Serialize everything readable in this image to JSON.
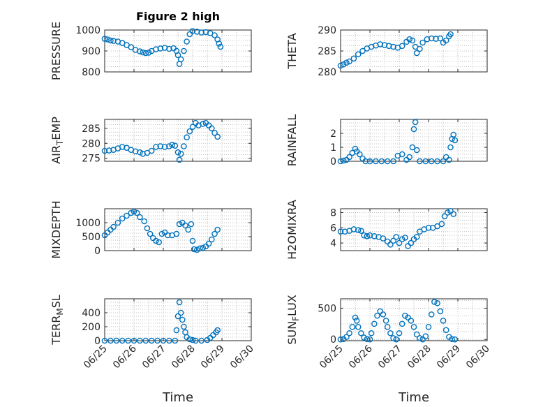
{
  "figure_title": "Figure 2 high",
  "chart_data": [
    {
      "type": "scatter",
      "ylabel": "PRESSURE",
      "ylabel_parts": [
        {
          "t": "PRESSURE",
          "sub": false
        }
      ],
      "xlabel": "",
      "xlim": [
        0,
        5
      ],
      "ylim": [
        800,
        1000
      ],
      "yticks": [
        800,
        900,
        1000
      ],
      "xticks": [
        0,
        1,
        2,
        3,
        4,
        5
      ],
      "xticklabels": [],
      "title": "Figure 2 high",
      "grid": true,
      "points": [
        [
          0,
          958
        ],
        [
          0.1,
          955
        ],
        [
          0.2,
          950
        ],
        [
          0.3,
          948
        ],
        [
          0.45,
          945
        ],
        [
          0.6,
          938
        ],
        [
          0.75,
          928
        ],
        [
          0.9,
          918
        ],
        [
          1.05,
          905
        ],
        [
          1.2,
          898
        ],
        [
          1.3,
          893
        ],
        [
          1.4,
          890
        ],
        [
          1.5,
          892
        ],
        [
          1.6,
          900
        ],
        [
          1.75,
          908
        ],
        [
          1.9,
          912
        ],
        [
          2.05,
          915
        ],
        [
          2.2,
          910
        ],
        [
          2.35,
          913
        ],
        [
          2.45,
          900
        ],
        [
          2.5,
          880
        ],
        [
          2.55,
          838
        ],
        [
          2.6,
          860
        ],
        [
          2.7,
          900
        ],
        [
          2.8,
          945
        ],
        [
          2.9,
          980
        ],
        [
          3.0,
          995
        ],
        [
          3.15,
          992
        ],
        [
          3.3,
          988
        ],
        [
          3.45,
          990
        ],
        [
          3.6,
          985
        ],
        [
          3.75,
          975
        ],
        [
          3.85,
          955
        ],
        [
          3.9,
          935
        ],
        [
          3.95,
          920
        ]
      ]
    },
    {
      "type": "scatter",
      "ylabel": "THETA",
      "ylabel_parts": [
        {
          "t": "THETA",
          "sub": false
        }
      ],
      "xlabel": "",
      "xlim": [
        0,
        5
      ],
      "ylim": [
        280,
        290
      ],
      "yticks": [
        280,
        285,
        290
      ],
      "xticks": [
        0,
        1,
        2,
        3,
        4,
        5
      ],
      "xticklabels": [],
      "grid": true,
      "points": [
        [
          0,
          281.5
        ],
        [
          0.1,
          281.8
        ],
        [
          0.2,
          282.2
        ],
        [
          0.3,
          282.5
        ],
        [
          0.45,
          283.2
        ],
        [
          0.6,
          284.2
        ],
        [
          0.75,
          285.0
        ],
        [
          0.9,
          285.6
        ],
        [
          1.05,
          286.0
        ],
        [
          1.2,
          286.3
        ],
        [
          1.35,
          286.6
        ],
        [
          1.5,
          286.4
        ],
        [
          1.65,
          286.2
        ],
        [
          1.8,
          286.0
        ],
        [
          1.95,
          285.8
        ],
        [
          2.1,
          286.2
        ],
        [
          2.25,
          287.2
        ],
        [
          2.35,
          287.8
        ],
        [
          2.45,
          287.5
        ],
        [
          2.55,
          286.0
        ],
        [
          2.6,
          284.5
        ],
        [
          2.7,
          285.5
        ],
        [
          2.8,
          287.0
        ],
        [
          2.95,
          287.8
        ],
        [
          3.1,
          288.0
        ],
        [
          3.25,
          287.9
        ],
        [
          3.4,
          288.0
        ],
        [
          3.5,
          287.0
        ],
        [
          3.6,
          287.5
        ],
        [
          3.7,
          288.5
        ],
        [
          3.75,
          289.0
        ]
      ]
    },
    {
      "type": "scatter",
      "ylabel": "AIR_TEMP",
      "ylabel_parts": [
        {
          "t": "AIR",
          "sub": false
        },
        {
          "t": "T",
          "sub": true
        },
        {
          "t": "EMP",
          "sub": false
        }
      ],
      "xlabel": "",
      "xlim": [
        0,
        5
      ],
      "ylim": [
        274,
        288
      ],
      "yticks": [
        275,
        280,
        285
      ],
      "xticks": [
        0,
        1,
        2,
        3,
        4,
        5
      ],
      "xticklabels": [],
      "grid": true,
      "points": [
        [
          0,
          277.5
        ],
        [
          0.15,
          277.6
        ],
        [
          0.3,
          277.8
        ],
        [
          0.45,
          278.3
        ],
        [
          0.6,
          278.8
        ],
        [
          0.75,
          278.5
        ],
        [
          0.9,
          277.8
        ],
        [
          1.05,
          277.3
        ],
        [
          1.2,
          277.0
        ],
        [
          1.3,
          276.5
        ],
        [
          1.45,
          276.8
        ],
        [
          1.6,
          277.5
        ],
        [
          1.75,
          278.8
        ],
        [
          1.9,
          279.0
        ],
        [
          2.05,
          278.8
        ],
        [
          2.2,
          279.0
        ],
        [
          2.3,
          279.5
        ],
        [
          2.4,
          279.2
        ],
        [
          2.5,
          277.0
        ],
        [
          2.55,
          274.5
        ],
        [
          2.6,
          276.5
        ],
        [
          2.7,
          279.0
        ],
        [
          2.8,
          282.0
        ],
        [
          2.9,
          284.0
        ],
        [
          3.0,
          285.5
        ],
        [
          3.1,
          286.8
        ],
        [
          3.2,
          286.0
        ],
        [
          3.35,
          286.5
        ],
        [
          3.45,
          286.8
        ],
        [
          3.55,
          286.0
        ],
        [
          3.65,
          285.0
        ],
        [
          3.75,
          283.5
        ],
        [
          3.85,
          282.2
        ]
      ]
    },
    {
      "type": "scatter",
      "ylabel": "RAINFALL",
      "ylabel_parts": [
        {
          "t": "RAINFALL",
          "sub": false
        }
      ],
      "xlabel": "",
      "xlim": [
        0,
        5
      ],
      "ylim": [
        0,
        3
      ],
      "yticks": [
        0,
        1,
        2
      ],
      "xticks": [
        0,
        1,
        2,
        3,
        4,
        5
      ],
      "xticklabels": [],
      "grid": true,
      "points": [
        [
          0,
          0
        ],
        [
          0.1,
          0.05
        ],
        [
          0.2,
          0.1
        ],
        [
          0.3,
          0.3
        ],
        [
          0.4,
          0.6
        ],
        [
          0.5,
          0.9
        ],
        [
          0.55,
          0.7
        ],
        [
          0.65,
          0.5
        ],
        [
          0.75,
          0.2
        ],
        [
          0.85,
          0
        ],
        [
          1.0,
          0
        ],
        [
          1.2,
          0
        ],
        [
          1.4,
          0
        ],
        [
          1.6,
          0
        ],
        [
          1.8,
          0
        ],
        [
          1.95,
          0.4
        ],
        [
          2.1,
          0.5
        ],
        [
          2.25,
          0.1
        ],
        [
          2.35,
          0.3
        ],
        [
          2.45,
          1.0
        ],
        [
          2.5,
          2.3
        ],
        [
          2.55,
          2.8
        ],
        [
          2.6,
          0.8
        ],
        [
          2.7,
          0
        ],
        [
          2.9,
          0
        ],
        [
          3.1,
          0
        ],
        [
          3.3,
          0
        ],
        [
          3.5,
          0
        ],
        [
          3.6,
          0.3
        ],
        [
          3.7,
          0.1
        ],
        [
          3.75,
          1.0
        ],
        [
          3.8,
          1.6
        ],
        [
          3.85,
          1.9
        ],
        [
          3.9,
          1.5
        ]
      ]
    },
    {
      "type": "scatter",
      "ylabel": "MIXDEPTH",
      "ylabel_parts": [
        {
          "t": "MIXDEPTH",
          "sub": false
        }
      ],
      "xlabel": "",
      "xlim": [
        0,
        5
      ],
      "ylim": [
        0,
        1500
      ],
      "yticks": [
        0,
        500,
        1000
      ],
      "xticks": [
        0,
        1,
        2,
        3,
        4,
        5
      ],
      "xticklabels": [],
      "grid": true,
      "points": [
        [
          0,
          550
        ],
        [
          0.1,
          650
        ],
        [
          0.2,
          750
        ],
        [
          0.3,
          850
        ],
        [
          0.45,
          1000
        ],
        [
          0.6,
          1150
        ],
        [
          0.75,
          1250
        ],
        [
          0.9,
          1350
        ],
        [
          1.0,
          1400
        ],
        [
          1.1,
          1350
        ],
        [
          1.2,
          1200
        ],
        [
          1.35,
          1050
        ],
        [
          1.45,
          800
        ],
        [
          1.55,
          600
        ],
        [
          1.65,
          450
        ],
        [
          1.75,
          350
        ],
        [
          1.85,
          300
        ],
        [
          1.95,
          600
        ],
        [
          2.05,
          650
        ],
        [
          2.15,
          550
        ],
        [
          2.3,
          550
        ],
        [
          2.45,
          600
        ],
        [
          2.55,
          950
        ],
        [
          2.65,
          1000
        ],
        [
          2.75,
          900
        ],
        [
          2.85,
          750
        ],
        [
          2.95,
          950
        ],
        [
          3.0,
          350
        ],
        [
          3.05,
          50
        ],
        [
          3.15,
          30
        ],
        [
          3.25,
          80
        ],
        [
          3.35,
          100
        ],
        [
          3.45,
          150
        ],
        [
          3.55,
          250
        ],
        [
          3.65,
          400
        ],
        [
          3.75,
          600
        ],
        [
          3.85,
          750
        ]
      ]
    },
    {
      "type": "scatter",
      "ylabel": "H2OMIXRA",
      "ylabel_parts": [
        {
          "t": "H2OMIXRA",
          "sub": false
        }
      ],
      "xlabel": "",
      "xlim": [
        0,
        5
      ],
      "ylim": [
        3,
        8.5
      ],
      "yticks": [
        4,
        6,
        8
      ],
      "xticks": [
        0,
        1,
        2,
        3,
        4,
        5
      ],
      "xticklabels": [],
      "grid": true,
      "points": [
        [
          0,
          5.5
        ],
        [
          0.15,
          5.5
        ],
        [
          0.3,
          5.6
        ],
        [
          0.45,
          5.8
        ],
        [
          0.6,
          5.7
        ],
        [
          0.7,
          5.6
        ],
        [
          0.8,
          5.0
        ],
        [
          0.9,
          4.9
        ],
        [
          1.0,
          5.0
        ],
        [
          1.15,
          4.9
        ],
        [
          1.3,
          4.8
        ],
        [
          1.45,
          4.6
        ],
        [
          1.6,
          4.2
        ],
        [
          1.7,
          3.8
        ],
        [
          1.8,
          4.3
        ],
        [
          1.9,
          4.8
        ],
        [
          2.0,
          4.0
        ],
        [
          2.1,
          4.5
        ],
        [
          2.2,
          4.7
        ],
        [
          2.3,
          3.6
        ],
        [
          2.4,
          4.0
        ],
        [
          2.5,
          4.5
        ],
        [
          2.6,
          4.8
        ],
        [
          2.7,
          5.5
        ],
        [
          2.85,
          5.8
        ],
        [
          3.0,
          6.0
        ],
        [
          3.15,
          6.0
        ],
        [
          3.3,
          6.2
        ],
        [
          3.45,
          6.5
        ],
        [
          3.55,
          7.5
        ],
        [
          3.65,
          8.0
        ],
        [
          3.75,
          8.2
        ],
        [
          3.85,
          7.8
        ]
      ]
    },
    {
      "type": "scatter",
      "ylabel": "TERR_MSL",
      "ylabel_parts": [
        {
          "t": "TERR",
          "sub": false
        },
        {
          "t": "M",
          "sub": true
        },
        {
          "t": "SL",
          "sub": false
        }
      ],
      "xlabel": "Time",
      "xlim": [
        0,
        5
      ],
      "ylim": [
        0,
        600
      ],
      "yticks": [
        0,
        200,
        400
      ],
      "xticks": [
        0,
        1,
        2,
        3,
        4,
        5
      ],
      "xticklabels": [
        "06/25",
        "06/26",
        "06/27",
        "06/28",
        "06/29",
        "06/30"
      ],
      "grid": true,
      "points": [
        [
          0,
          0
        ],
        [
          0.2,
          0
        ],
        [
          0.4,
          0
        ],
        [
          0.6,
          0
        ],
        [
          0.8,
          0
        ],
        [
          1.0,
          0
        ],
        [
          1.2,
          0
        ],
        [
          1.4,
          0
        ],
        [
          1.6,
          0
        ],
        [
          1.8,
          0
        ],
        [
          2.0,
          0
        ],
        [
          2.2,
          0
        ],
        [
          2.4,
          0
        ],
        [
          2.45,
          150
        ],
        [
          2.5,
          350
        ],
        [
          2.55,
          550
        ],
        [
          2.6,
          400
        ],
        [
          2.65,
          300
        ],
        [
          2.7,
          200
        ],
        [
          2.75,
          120
        ],
        [
          2.8,
          50
        ],
        [
          2.9,
          20
        ],
        [
          3.0,
          10
        ],
        [
          3.1,
          0
        ],
        [
          3.3,
          0
        ],
        [
          3.5,
          10
        ],
        [
          3.6,
          40
        ],
        [
          3.7,
          80
        ],
        [
          3.8,
          120
        ],
        [
          3.85,
          150
        ]
      ]
    },
    {
      "type": "scatter",
      "ylabel": "SUN_FLUX",
      "ylabel_parts": [
        {
          "t": "SUN",
          "sub": false
        },
        {
          "t": "F",
          "sub": true
        },
        {
          "t": "LUX",
          "sub": false
        }
      ],
      "xlabel": "Time",
      "xlim": [
        0,
        5
      ],
      "ylim": [
        -20,
        650
      ],
      "yticks": [
        0,
        500
      ],
      "xticks": [
        0,
        1,
        2,
        3,
        4,
        5
      ],
      "xticklabels": [
        "06/25",
        "06/26",
        "06/27",
        "06/28",
        "06/29",
        "06/30"
      ],
      "grid": true,
      "points": [
        [
          0,
          0
        ],
        [
          0.1,
          5
        ],
        [
          0.2,
          40
        ],
        [
          0.3,
          100
        ],
        [
          0.4,
          200
        ],
        [
          0.5,
          350
        ],
        [
          0.55,
          300
        ],
        [
          0.6,
          200
        ],
        [
          0.7,
          100
        ],
        [
          0.8,
          30
        ],
        [
          0.9,
          5
        ],
        [
          1.0,
          0
        ],
        [
          1.05,
          100
        ],
        [
          1.15,
          250
        ],
        [
          1.25,
          380
        ],
        [
          1.35,
          450
        ],
        [
          1.45,
          400
        ],
        [
          1.55,
          300
        ],
        [
          1.6,
          200
        ],
        [
          1.7,
          100
        ],
        [
          1.8,
          20
        ],
        [
          1.9,
          0
        ],
        [
          2.0,
          100
        ],
        [
          2.1,
          250
        ],
        [
          2.2,
          380
        ],
        [
          2.3,
          350
        ],
        [
          2.4,
          300
        ],
        [
          2.5,
          200
        ],
        [
          2.6,
          80
        ],
        [
          2.7,
          20
        ],
        [
          2.8,
          0
        ],
        [
          2.9,
          50
        ],
        [
          3.0,
          200
        ],
        [
          3.1,
          400
        ],
        [
          3.2,
          600
        ],
        [
          3.3,
          580
        ],
        [
          3.4,
          450
        ],
        [
          3.5,
          300
        ],
        [
          3.6,
          150
        ],
        [
          3.7,
          40
        ],
        [
          3.8,
          5
        ],
        [
          3.9,
          0
        ]
      ]
    }
  ]
}
